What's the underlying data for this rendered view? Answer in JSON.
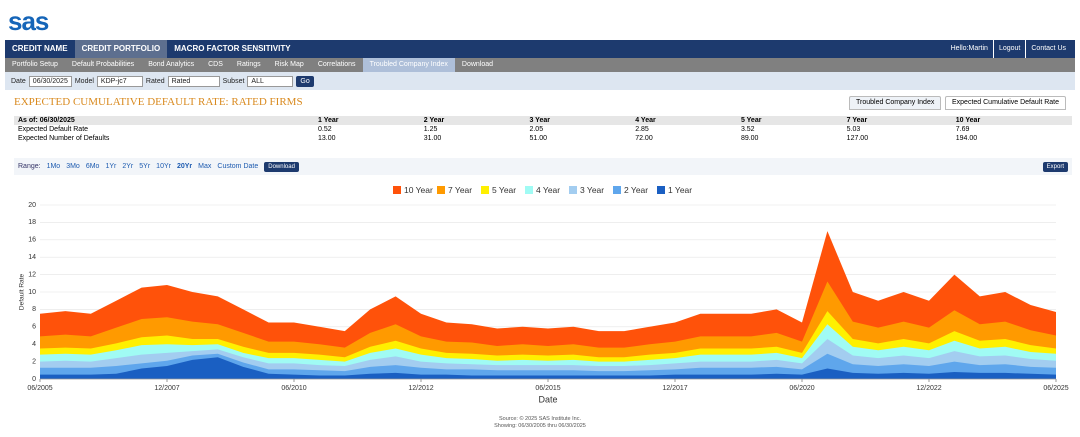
{
  "header": {
    "logo": "sas",
    "nav": [
      "CREDIT NAME",
      "CREDIT PORTFOLIO",
      "MACRO FACTOR SENSITIVITY"
    ],
    "user": "Hello:Martin",
    "links": [
      "Logout",
      "Contact Us"
    ]
  },
  "subnav": [
    "Portfolio Setup",
    "Default Probabilities",
    "Bond Analytics",
    "CDS",
    "Ratings",
    "Risk Map",
    "Correlations",
    "Troubled Company Index",
    "Download"
  ],
  "filters": {
    "date_label": "Date",
    "date": "06/30/2025",
    "model_label": "Model",
    "model": "KDP-jc7",
    "rated_label": "Rated",
    "rated": "Rated",
    "subset_label": "Subset",
    "subset": "ALL",
    "go": "Go"
  },
  "page_title": "EXPECTED CUMULATIVE DEFAULT RATE: RATED FIRMS",
  "tabs": [
    "Troubled Company Index",
    "Expected Cumulative Default Rate"
  ],
  "table": {
    "header": [
      "As of: 06/30/2025",
      "1 Year",
      "2 Year",
      "3 Year",
      "4 Year",
      "5 Year",
      "7 Year",
      "10 Year"
    ],
    "rows": [
      [
        "Expected Default Rate",
        "0.52",
        "1.25",
        "2.05",
        "2.85",
        "3.52",
        "5.03",
        "7.69"
      ],
      [
        "Expected Number of Defaults",
        "13.00",
        "31.00",
        "51.00",
        "72.00",
        "89.00",
        "127.00",
        "194.00"
      ]
    ]
  },
  "range": {
    "label": "Range:",
    "options": [
      "1Mo",
      "3Mo",
      "6Mo",
      "1Yr",
      "2Yr",
      "5Yr",
      "10Yr",
      "20Yr",
      "Max",
      "Custom Date"
    ],
    "download": "Download",
    "export": "Export"
  },
  "chart_data": {
    "type": "area",
    "x_label": "Date",
    "y_label": "Default Rate",
    "x": [
      "06/2005",
      "12/2005",
      "06/2006",
      "12/2006",
      "06/2007",
      "12/2007",
      "06/2008",
      "12/2008",
      "06/2009",
      "12/2009",
      "06/2010",
      "12/2010",
      "06/2011",
      "12/2011",
      "06/2012",
      "12/2012",
      "06/2013",
      "12/2013",
      "06/2014",
      "12/2014",
      "06/2015",
      "12/2015",
      "06/2016",
      "12/2016",
      "06/2017",
      "12/2017",
      "06/2018",
      "12/2018",
      "06/2019",
      "12/2019",
      "06/2020",
      "12/2020",
      "06/2021",
      "12/2021",
      "06/2022",
      "12/2022",
      "06/2023",
      "12/2023",
      "06/2024",
      "12/2024",
      "06/2025"
    ],
    "xticks": [
      "06/2005",
      "12/2007",
      "06/2010",
      "12/2012",
      "06/2015",
      "12/2017",
      "06/2020",
      "12/2022",
      "06/2025"
    ],
    "ylim": [
      0,
      20
    ],
    "yticks": [
      0,
      2,
      4,
      6,
      8,
      10,
      12,
      14,
      16,
      18,
      20
    ],
    "grid": true,
    "series": [
      {
        "name": "10 Year",
        "color": "#ff520a",
        "values": [
          7.5,
          7.8,
          7.5,
          9.0,
          10.5,
          10.8,
          10.0,
          9.5,
          8.0,
          6.5,
          6.5,
          6.0,
          5.5,
          8.0,
          9.5,
          7.5,
          6.5,
          6.3,
          5.8,
          6.0,
          5.8,
          6.0,
          5.5,
          5.5,
          6.0,
          6.5,
          7.5,
          7.5,
          7.5,
          8.0,
          6.5,
          17.0,
          10.0,
          9.0,
          10.0,
          9.0,
          12.0,
          9.5,
          10.0,
          8.5,
          7.7
        ]
      },
      {
        "name": "7 Year",
        "color": "#ff9a00",
        "values": [
          4.9,
          5.1,
          4.9,
          5.9,
          6.9,
          7.1,
          6.6,
          6.3,
          5.3,
          4.3,
          4.3,
          4.0,
          3.6,
          5.3,
          6.3,
          4.9,
          4.3,
          4.2,
          3.8,
          4.0,
          3.8,
          4.0,
          3.6,
          3.6,
          4.0,
          4.3,
          4.9,
          4.9,
          4.9,
          5.3,
          4.3,
          11.2,
          6.6,
          5.9,
          6.6,
          5.9,
          7.9,
          6.3,
          6.6,
          5.6,
          5.0
        ]
      },
      {
        "name": "5 Year",
        "color": "#fff000",
        "values": [
          3.5,
          3.6,
          3.5,
          4.1,
          4.8,
          5.0,
          4.6,
          4.6,
          3.7,
          3.0,
          3.0,
          2.8,
          2.5,
          3.7,
          4.4,
          3.5,
          3.0,
          2.9,
          2.7,
          2.8,
          2.7,
          2.8,
          2.5,
          2.5,
          2.8,
          3.0,
          3.5,
          3.5,
          3.5,
          3.7,
          3.0,
          7.8,
          4.6,
          4.1,
          4.6,
          4.1,
          5.5,
          4.4,
          4.6,
          3.9,
          3.5
        ]
      },
      {
        "name": "4 Year",
        "color": "#a0fbf4",
        "values": [
          2.8,
          2.9,
          2.8,
          3.3,
          3.9,
          4.0,
          3.9,
          4.0,
          3.0,
          2.4,
          2.4,
          2.2,
          2.0,
          3.0,
          3.5,
          2.8,
          2.4,
          2.3,
          2.1,
          2.2,
          2.1,
          2.2,
          2.0,
          2.0,
          2.2,
          2.4,
          2.8,
          2.8,
          2.8,
          3.0,
          2.4,
          6.3,
          3.7,
          3.3,
          3.7,
          3.3,
          4.4,
          3.5,
          3.7,
          3.1,
          2.9
        ]
      },
      {
        "name": "3 Year",
        "color": "#a3cdf0",
        "values": [
          2.0,
          2.1,
          2.0,
          2.4,
          2.8,
          3.0,
          3.2,
          3.4,
          2.5,
          1.8,
          1.8,
          1.6,
          1.5,
          2.2,
          2.6,
          2.0,
          1.8,
          1.7,
          1.6,
          1.6,
          1.6,
          1.6,
          1.5,
          1.5,
          1.6,
          1.8,
          2.0,
          2.0,
          2.0,
          2.2,
          1.8,
          4.6,
          2.7,
          2.4,
          2.7,
          2.4,
          3.2,
          2.6,
          2.7,
          2.3,
          2.1
        ]
      },
      {
        "name": "2 Year",
        "color": "#5fa6ec",
        "values": [
          1.3,
          1.3,
          1.3,
          1.5,
          1.8,
          2.1,
          2.7,
          2.9,
          1.9,
          1.1,
          1.1,
          1.0,
          0.9,
          1.4,
          1.6,
          1.3,
          1.1,
          1.1,
          1.0,
          1.0,
          1.0,
          1.0,
          0.9,
          0.9,
          1.0,
          1.1,
          1.3,
          1.3,
          1.3,
          1.4,
          1.1,
          2.9,
          1.7,
          1.5,
          1.7,
          1.5,
          2.0,
          1.6,
          1.7,
          1.4,
          1.3
        ]
      },
      {
        "name": "1 Year",
        "color": "#1a5fc2",
        "values": [
          0.5,
          0.5,
          0.5,
          0.6,
          1.2,
          1.5,
          2.2,
          2.5,
          1.4,
          0.6,
          0.5,
          0.4,
          0.4,
          0.6,
          0.7,
          0.5,
          0.5,
          0.4,
          0.4,
          0.4,
          0.4,
          0.4,
          0.4,
          0.4,
          0.4,
          0.5,
          0.5,
          0.5,
          0.5,
          0.6,
          0.5,
          1.2,
          0.7,
          0.6,
          0.7,
          0.6,
          0.8,
          0.7,
          0.7,
          0.6,
          0.5
        ]
      }
    ]
  },
  "footer": [
    "Source: © 2025 SAS Institute Inc.",
    "Showing: 06/30/2005 thru 06/30/2025"
  ]
}
